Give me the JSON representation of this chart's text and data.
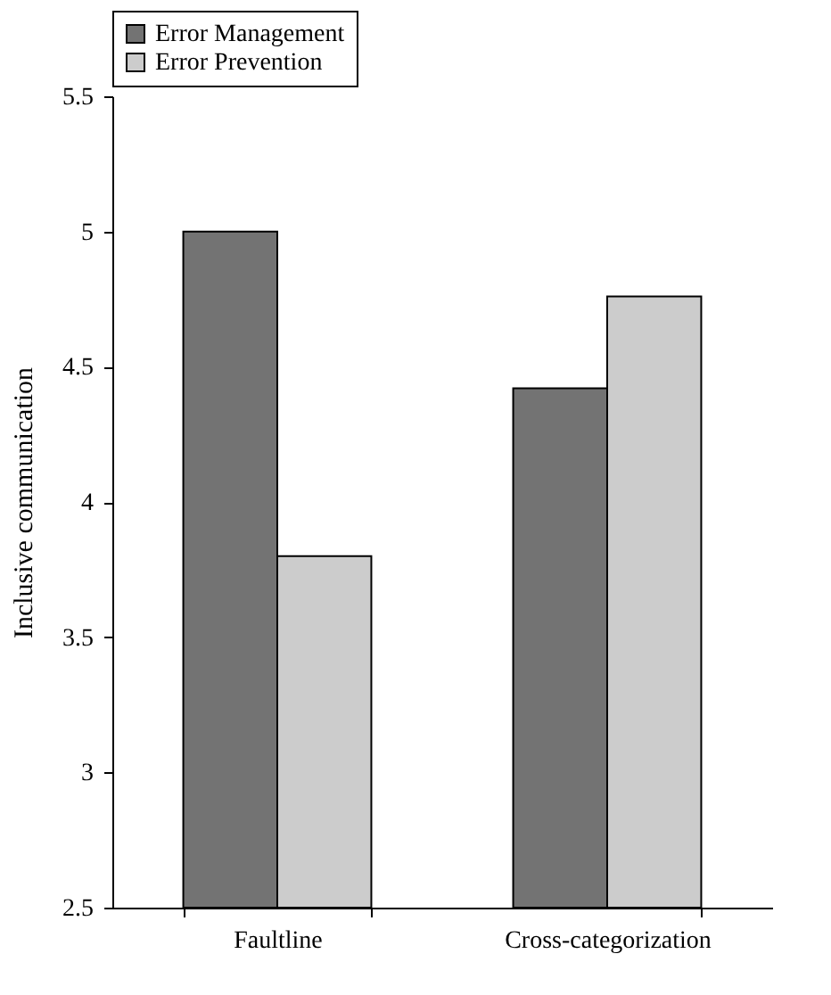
{
  "chart_data": {
    "type": "bar",
    "ylabel": "Inclusive communication",
    "categories": [
      "Faultline",
      "Cross-categorization"
    ],
    "series": [
      {
        "name": "Error Management",
        "color": "#737373",
        "values": [
          5.0,
          4.42
        ]
      },
      {
        "name": "Error Prevention",
        "color": "#cccccc",
        "values": [
          3.8,
          4.76
        ]
      }
    ],
    "ylim": [
      2.5,
      5.5
    ],
    "yticks": [
      2.5,
      3,
      3.5,
      4,
      4.5,
      5,
      5.5
    ],
    "grid": false,
    "legend": "top"
  }
}
